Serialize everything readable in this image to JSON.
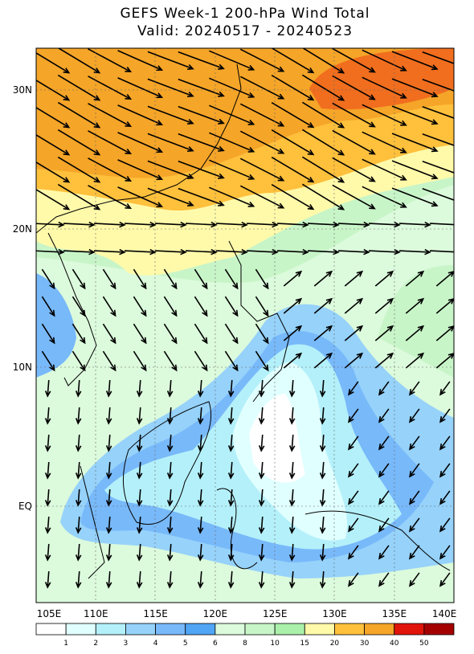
{
  "header": {
    "title": "GEFS Week-1 200-hPa Wind Total",
    "subtitle": "Valid: 20240517 - 20240523"
  },
  "map": {
    "lat_labels": [
      "30N",
      "20N",
      "10N",
      "EQ"
    ],
    "lon_labels": [
      "105E",
      "110E",
      "115E",
      "120E",
      "125E",
      "130E",
      "135E",
      "140E"
    ]
  },
  "colorbar": {
    "labels": [
      "1",
      "2",
      "3",
      "4",
      "5",
      "6",
      "8",
      "10",
      "15",
      "20",
      "30",
      "40",
      "50"
    ]
  }
}
